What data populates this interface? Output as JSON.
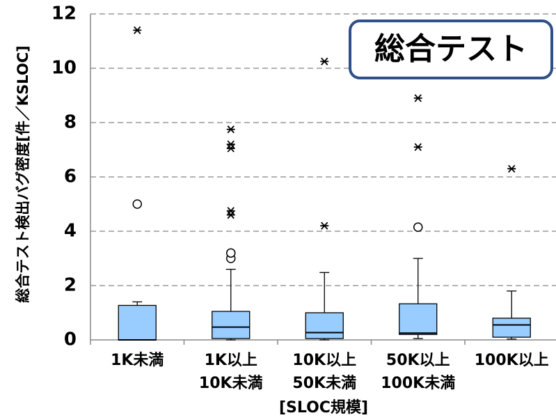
{
  "chart_data": {
    "type": "box",
    "y_label": "総合テスト検出バグ密度[件／KSLOC]",
    "x_label": "[SLOC規模]",
    "annotation": "総合テスト",
    "categories": [
      "1K未満",
      "1K以上\n10K未満",
      "10K以上\n50K未満",
      "50K以上\n100K未満",
      "100K以上"
    ],
    "color": "#99ccff",
    "ylim": [
      0,
      12
    ],
    "yticks": [
      0,
      2,
      4,
      6,
      8,
      10,
      12
    ],
    "grid": true,
    "boxes": [
      {
        "min": 0,
        "q1": 0,
        "median": 0,
        "q3": 1.27,
        "max": 1.4,
        "outliers": [
          5.0
        ],
        "extremes": [
          11.4
        ]
      },
      {
        "min": 0,
        "q1": 0.05,
        "median": 0.47,
        "q3": 1.05,
        "max": 2.6,
        "outliers": [
          3.0,
          3.2
        ],
        "extremes": [
          4.6,
          4.75,
          7.05,
          7.2,
          7.75
        ]
      },
      {
        "min": 0,
        "q1": 0.05,
        "median": 0.27,
        "q3": 1.0,
        "max": 2.48,
        "outliers": [],
        "extremes": [
          4.2,
          10.25
        ]
      },
      {
        "min": 0.05,
        "q1": 0.2,
        "median": 0.25,
        "q3": 1.33,
        "max": 3.0,
        "outliers": [
          4.15
        ],
        "extremes": [
          7.1,
          8.9
        ]
      },
      {
        "min": 0.03,
        "q1": 0.1,
        "median": 0.55,
        "q3": 0.8,
        "max": 1.8,
        "outliers": [],
        "extremes": [
          6.3
        ]
      }
    ]
  }
}
